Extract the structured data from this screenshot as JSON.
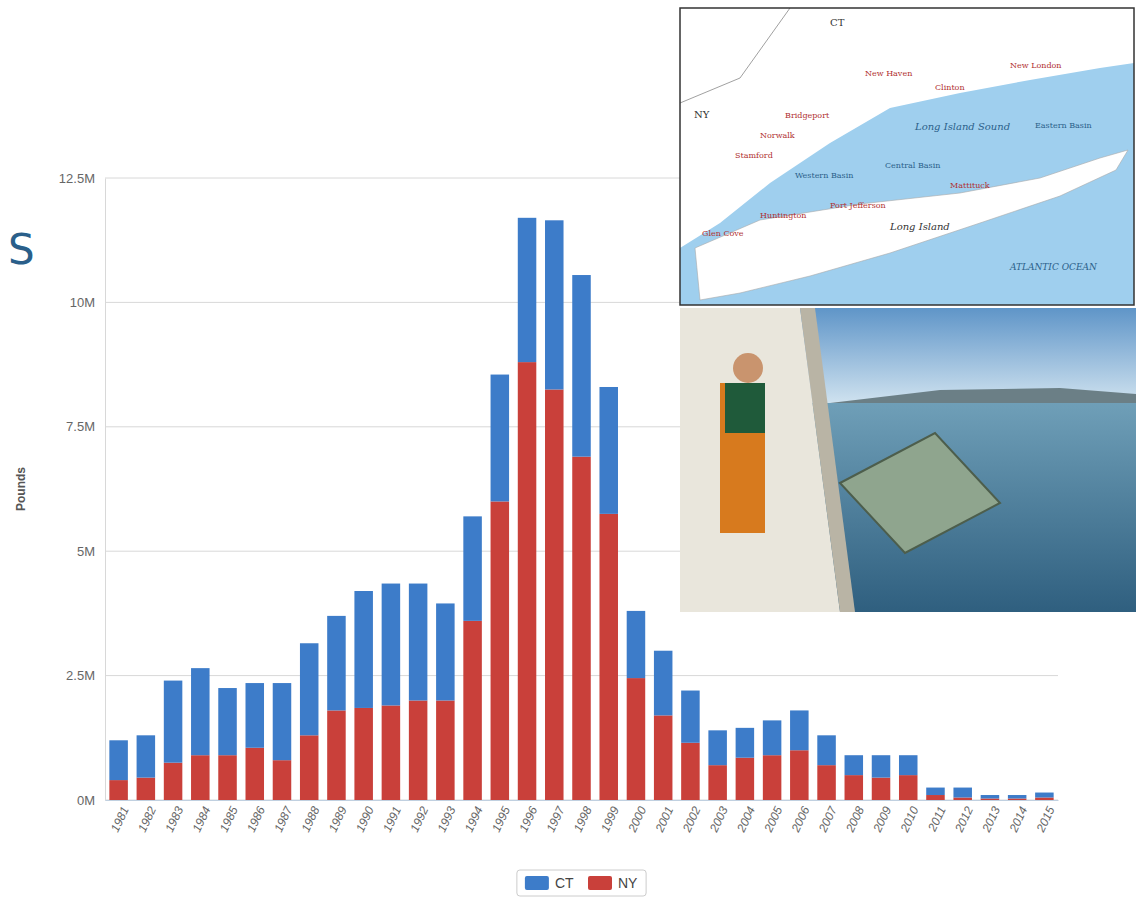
{
  "chart_data": {
    "type": "bar",
    "stacked": true,
    "grid": true,
    "legend": "bottom",
    "y_label": "Pounds",
    "annotations": [
      {
        "text": "S"
      }
    ],
    "categories": [
      "1981",
      "1982",
      "1983",
      "1984",
      "1985",
      "1986",
      "1987",
      "1988",
      "1989",
      "1990",
      "1991",
      "1992",
      "1993",
      "1994",
      "1995",
      "1996",
      "1997",
      "1998",
      "1999",
      "2000",
      "2001",
      "2002",
      "2003",
      "2004",
      "2005",
      "2006",
      "2007",
      "2008",
      "2009",
      "2010",
      "2011",
      "2012",
      "2013",
      "2014",
      "2015"
    ],
    "series": [
      {
        "name": "CT",
        "color": "#3d7cc9",
        "values": [
          800000,
          850000,
          1650000,
          1750000,
          1350000,
          1300000,
          1550000,
          1850000,
          1900000,
          2350000,
          2450000,
          2350000,
          1950000,
          2100000,
          2550000,
          2900000,
          3400000,
          3650000,
          2550000,
          1350000,
          1300000,
          1050000,
          700000,
          600000,
          700000,
          800000,
          600000,
          400000,
          450000,
          400000,
          150000,
          200000,
          70000,
          70000,
          100000
        ]
      },
      {
        "name": "NY",
        "color": "#c9403a",
        "values": [
          400000,
          450000,
          750000,
          900000,
          900000,
          1050000,
          800000,
          1300000,
          1800000,
          1850000,
          1900000,
          2000000,
          2000000,
          3600000,
          6000000,
          8800000,
          8250000,
          6900000,
          5750000,
          2450000,
          1700000,
          1150000,
          700000,
          850000,
          900000,
          1000000,
          700000,
          500000,
          450000,
          500000,
          100000,
          50000,
          30000,
          30000,
          50000
        ]
      }
    ],
    "ylim": [
      0,
      12500000
    ],
    "yticks": [
      {
        "value": 0,
        "label": "0M"
      },
      {
        "value": 2500000,
        "label": "2.5M"
      },
      {
        "value": 5000000,
        "label": "5M"
      },
      {
        "value": 7500000,
        "label": "7.5M"
      },
      {
        "value": 10000000,
        "label": "10M"
      },
      {
        "value": 12500000,
        "label": "12.5M"
      }
    ]
  },
  "map": {
    "labels": [
      "CT",
      "NY",
      "Long Island Sound",
      "Long Island",
      "ATLANTIC OCEAN",
      "Stamford",
      "Norwalk",
      "Bridgeport",
      "New Haven",
      "Clinton",
      "New London",
      "Western Basin",
      "Central Basin",
      "Eastern Basin",
      "Glen Cove",
      "Huntington",
      "Port Jefferson",
      "Mattituck"
    ]
  }
}
